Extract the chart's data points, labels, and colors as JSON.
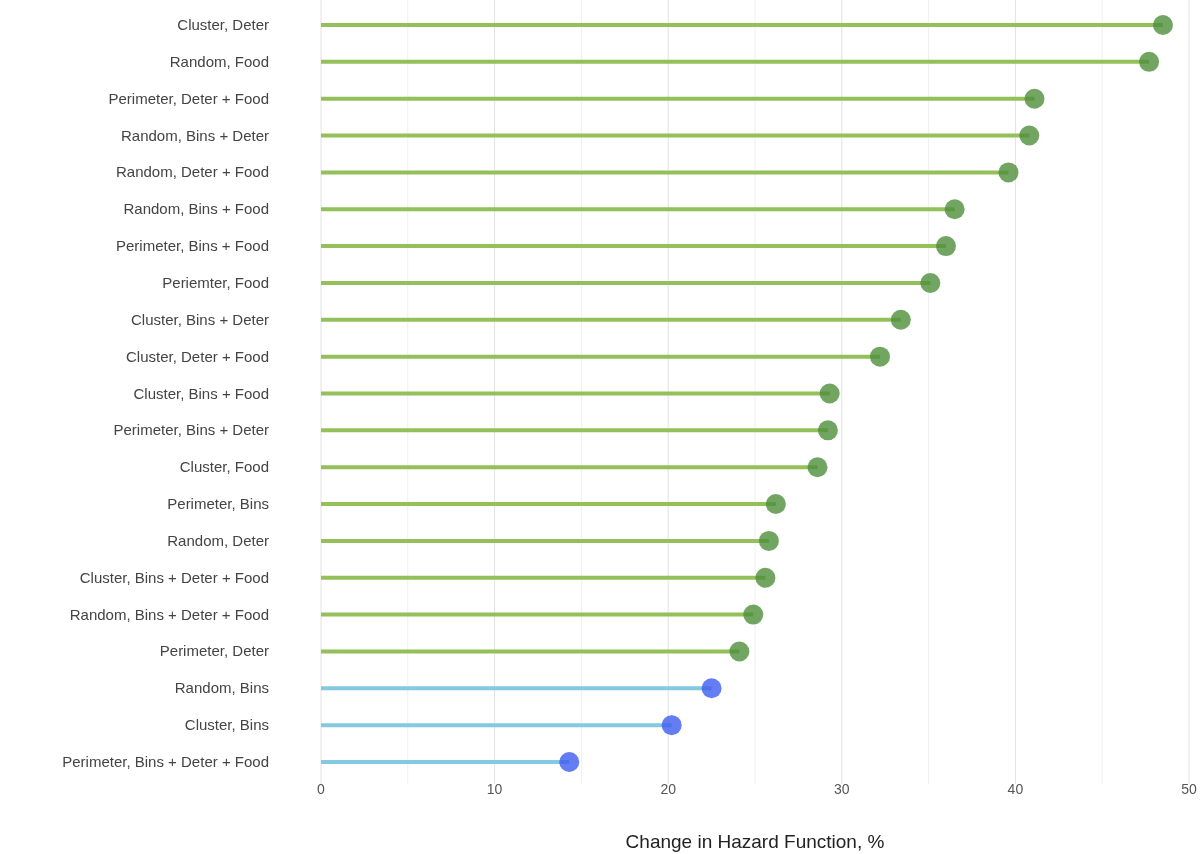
{
  "chart_data": {
    "type": "lollipop",
    "orientation": "horizontal",
    "xlabel": "Change in Hazard Function, %",
    "categories": [
      "Cluster, Deter",
      "Random, Food",
      "Perimeter, Deter + Food",
      "Random, Bins + Deter",
      "Random, Deter + Food",
      "Random, Bins + Food",
      "Perimeter, Bins + Food",
      "Periemter, Food",
      "Cluster, Bins + Deter",
      "Cluster, Deter + Food",
      "Cluster, Bins + Food",
      "Perimeter, Bins + Deter",
      "Cluster, Food",
      "Perimeter, Bins",
      "Random, Deter",
      "Cluster, Bins + Deter + Food",
      "Random, Bins + Deter + Food",
      "Perimeter, Deter",
      "Random, Bins",
      "Cluster, Bins",
      "Perimeter, Bins + Deter + Food"
    ],
    "values": [
      48.5,
      47.7,
      41.1,
      40.8,
      39.6,
      36.5,
      36.0,
      35.1,
      33.4,
      32.2,
      29.3,
      29.2,
      28.6,
      26.2,
      25.8,
      25.6,
      24.9,
      24.1,
      22.5,
      20.2,
      14.3
    ],
    "colors": [
      "#4e8f3a",
      "#4e8f3a",
      "#4e8f3a",
      "#4e8f3a",
      "#4e8f3a",
      "#4e8f3a",
      "#4e8f3a",
      "#4e8f3a",
      "#4e8f3a",
      "#4e8f3a",
      "#4e8f3a",
      "#4e8f3a",
      "#4e8f3a",
      "#4e8f3a",
      "#4e8f3a",
      "#4e8f3a",
      "#4e8f3a",
      "#4e8f3a",
      "#3d5cf0",
      "#3d5cf0",
      "#3d5cf0"
    ],
    "xlim": [
      0,
      50
    ],
    "xticks": [
      0,
      10,
      20,
      30,
      40,
      50
    ],
    "grid": "x",
    "marker": "circle"
  }
}
